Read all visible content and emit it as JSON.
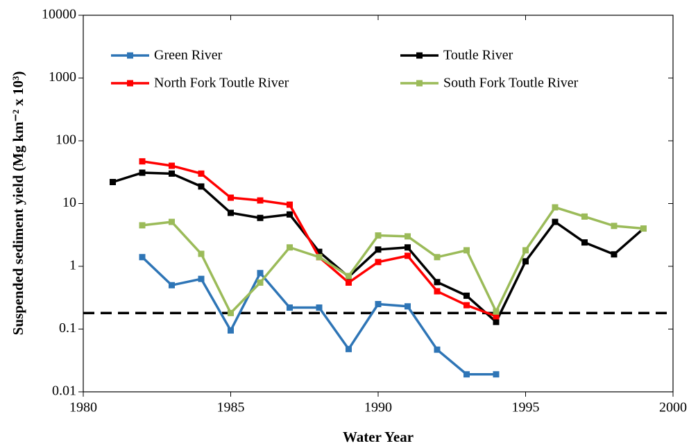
{
  "chart_data": {
    "type": "line",
    "xlabel": "Water Year",
    "ylabel": "Suspended sediment yield (Mg km⁻² x 10³)",
    "x": [
      1981,
      1982,
      1983,
      1984,
      1985,
      1986,
      1987,
      1988,
      1989,
      1990,
      1991,
      1992,
      1993,
      1994,
      1995,
      1996,
      1997,
      1998,
      1999
    ],
    "series": [
      {
        "name": "Green River",
        "color": "#2e75b6",
        "values": [
          null,
          1.4,
          0.5,
          0.63,
          0.095,
          0.78,
          0.22,
          0.22,
          0.048,
          0.25,
          0.23,
          0.047,
          0.019,
          0.019,
          null,
          null,
          null,
          null,
          null
        ]
      },
      {
        "name": "Toutle River",
        "color": "#000000",
        "values": [
          22,
          31,
          30,
          18.7,
          7.1,
          5.9,
          6.7,
          1.7,
          0.68,
          1.85,
          2.0,
          0.56,
          0.34,
          0.13,
          1.2,
          5.1,
          2.4,
          1.55,
          4.0
        ]
      },
      {
        "name": "North Fork Toutle River",
        "color": "#ff0000",
        "values": [
          null,
          47,
          40,
          30,
          12.4,
          11.2,
          9.6,
          1.4,
          0.55,
          1.17,
          1.47,
          0.4,
          0.24,
          0.16,
          null,
          null,
          null,
          null,
          null
        ]
      },
      {
        "name": "South Fork Toutle River",
        "color": "#9bbb59",
        "values": [
          null,
          4.5,
          5.1,
          1.58,
          0.18,
          0.55,
          2.0,
          1.4,
          0.7,
          3.1,
          3.0,
          1.4,
          1.8,
          0.19,
          1.8,
          8.7,
          6.2,
          4.4,
          4.0
        ]
      }
    ],
    "reference_line": 0.18,
    "xlim": [
      1980,
      2000
    ],
    "xticks": [
      1980,
      1985,
      1990,
      1995,
      2000
    ],
    "ylim": [
      0.01,
      10000
    ],
    "yticks": [
      0.01,
      0.1,
      1,
      10,
      100,
      1000,
      10000
    ],
    "log_y": true,
    "grid": false,
    "legend": "top"
  }
}
